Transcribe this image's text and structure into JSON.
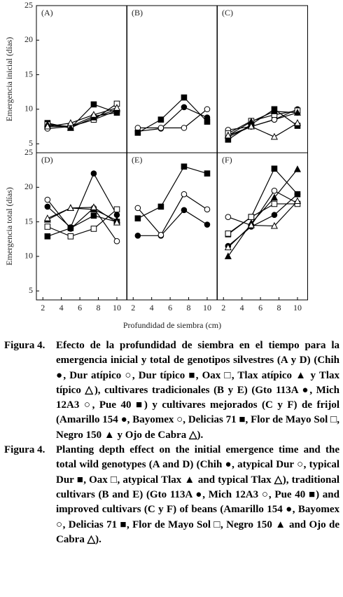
{
  "chart_data": [
    {
      "type": "line",
      "title": "(A)",
      "ylabel": "Emergencia inicial (días)",
      "x": [
        2.5,
        5,
        7.5,
        10
      ],
      "xlim": [
        1.3,
        11.1
      ],
      "ylim": [
        3.7,
        25
      ],
      "yticks": [
        5,
        10,
        15,
        20,
        25
      ],
      "series": [
        {
          "marker": "circle",
          "filled": true,
          "color": "#000000",
          "values": [
            7.5,
            7.5,
            9,
            9.5
          ]
        },
        {
          "marker": "circle",
          "filled": false,
          "color": "#000000",
          "values": [
            7.2,
            7.5,
            8.5,
            9.8
          ]
        },
        {
          "marker": "square",
          "filled": true,
          "color": "#000000",
          "values": [
            8,
            7.3,
            10.7,
            9.5
          ]
        },
        {
          "marker": "square",
          "filled": false,
          "color": "#000000",
          "values": [
            7.8,
            7.5,
            8.5,
            10.8
          ]
        },
        {
          "marker": "triangle",
          "filled": true,
          "color": "#000000",
          "values": [
            7.8,
            7.3,
            8.8,
            10
          ]
        },
        {
          "marker": "triangle",
          "filled": false,
          "color": "#000000",
          "values": [
            7.5,
            8,
            9.2,
            10.2
          ]
        }
      ]
    },
    {
      "type": "line",
      "title": "(B)",
      "x": [
        2.5,
        5,
        7.5,
        10
      ],
      "xlim": [
        1.3,
        11.1
      ],
      "ylim": [
        3.7,
        25
      ],
      "series": [
        {
          "marker": "circle",
          "filled": true,
          "color": "#000000",
          "values": [
            6.8,
            7.2,
            10.3,
            8.8
          ]
        },
        {
          "marker": "circle",
          "filled": false,
          "color": "#000000",
          "values": [
            7.3,
            7.3,
            7.3,
            10
          ]
        },
        {
          "marker": "square",
          "filled": true,
          "color": "#000000",
          "values": [
            6.6,
            8.5,
            11.7,
            8.2
          ]
        }
      ]
    },
    {
      "type": "line",
      "title": "(C)",
      "x": [
        2.5,
        5,
        7.5,
        10
      ],
      "xlim": [
        1.3,
        11.1
      ],
      "ylim": [
        3.7,
        25
      ],
      "series": [
        {
          "marker": "circle",
          "filled": true,
          "color": "#000000",
          "values": [
            6,
            7.5,
            8.5,
            10
          ]
        },
        {
          "marker": "circle",
          "filled": false,
          "color": "#000000",
          "values": [
            7,
            7.5,
            8.5,
            9.5
          ]
        },
        {
          "marker": "square",
          "filled": true,
          "color": "#000000",
          "values": [
            5.6,
            7.8,
            10,
            7.6
          ]
        },
        {
          "marker": "square",
          "filled": false,
          "color": "#000000",
          "values": [
            6.5,
            8.3,
            9.2,
            9.8
          ]
        },
        {
          "marker": "triangle",
          "filled": true,
          "color": "#000000",
          "values": [
            6.2,
            8.2,
            9.7,
            9.5
          ]
        },
        {
          "marker": "triangle",
          "filled": false,
          "color": "#000000",
          "values": [
            6.2,
            7.5,
            6,
            8
          ]
        }
      ]
    },
    {
      "type": "line",
      "title": "(D)",
      "ylabel": "Emergencia total (días)",
      "x": [
        2.5,
        5,
        7.5,
        10
      ],
      "xlim": [
        1.3,
        11.1
      ],
      "ylim": [
        3.7,
        25
      ],
      "yticks": [
        5,
        10,
        15,
        20,
        25
      ],
      "xticks": [
        2,
        4,
        6,
        8,
        10
      ],
      "series": [
        {
          "marker": "circle",
          "filled": true,
          "color": "#000000",
          "values": [
            17.2,
            14.2,
            22,
            16
          ]
        },
        {
          "marker": "circle",
          "filled": false,
          "color": "#000000",
          "values": [
            18.2,
            14,
            17,
            12.2
          ]
        },
        {
          "marker": "square",
          "filled": true,
          "color": "#000000",
          "values": [
            12.9,
            14.1,
            15.9,
            15
          ]
        },
        {
          "marker": "square",
          "filled": false,
          "color": "#000000",
          "values": [
            14.3,
            12.9,
            14,
            16.8
          ]
        },
        {
          "marker": "triangle",
          "filled": true,
          "color": "#000000",
          "values": [
            15.3,
            17,
            16.8,
            15.2
          ]
        },
        {
          "marker": "triangle",
          "filled": false,
          "color": "#000000",
          "values": [
            15.5,
            17,
            17.1,
            14.9
          ]
        }
      ]
    },
    {
      "type": "line",
      "title": "(E)",
      "xlabel": "Profundidad de siembra (cm)",
      "x": [
        2.5,
        5,
        7.5,
        10
      ],
      "xlim": [
        1.3,
        11.1
      ],
      "ylim": [
        3.7,
        25
      ],
      "xticks": [
        2,
        4,
        6,
        8,
        10
      ],
      "series": [
        {
          "marker": "circle",
          "filled": true,
          "color": "#000000",
          "values": [
            13,
            13,
            16.7,
            14.6
          ]
        },
        {
          "marker": "circle",
          "filled": false,
          "color": "#000000",
          "values": [
            17,
            13.1,
            19,
            16.8
          ]
        },
        {
          "marker": "square",
          "filled": true,
          "color": "#000000",
          "values": [
            15.5,
            17.2,
            23,
            22
          ]
        }
      ]
    },
    {
      "type": "line",
      "title": "(F)",
      "x": [
        2.5,
        5,
        7.5,
        10
      ],
      "xlim": [
        1.3,
        11.1
      ],
      "ylim": [
        3.7,
        25
      ],
      "xticks": [
        2,
        4,
        6,
        8,
        10
      ],
      "series": [
        {
          "marker": "circle",
          "filled": true,
          "color": "#000000",
          "values": [
            11.5,
            14.3,
            16,
            19
          ]
        },
        {
          "marker": "circle",
          "filled": false,
          "color": "#000000",
          "values": [
            15.7,
            14.5,
            19.5,
            17.7
          ]
        },
        {
          "marker": "square",
          "filled": true,
          "color": "#000000",
          "values": [
            13.2,
            15.7,
            22.7,
            19
          ]
        },
        {
          "marker": "square",
          "filled": false,
          "color": "#000000",
          "values": [
            13.3,
            15.7,
            17.6,
            17.6
          ]
        },
        {
          "marker": "triangle",
          "filled": true,
          "color": "#000000",
          "values": [
            10,
            14.8,
            18.5,
            22.6
          ]
        },
        {
          "marker": "triangle",
          "filled": false,
          "color": "#000000",
          "values": [
            11.3,
            14.5,
            14.4,
            18
          ]
        }
      ]
    }
  ],
  "caption": [
    {
      "label": "Figura 4.",
      "text": "Efecto de la profundidad de siembra en el tiempo para la emergencia inicial y total de genotipos silvestres (A y D) (Chih ●, Dur atípico ○, Dur típico ■, Oax □, Tlax atípico ▲ y Tlax típico △), cultivares tradicionales (B y E) (Gto 113A ●, Mich 12A3 ○, Pue 40 ■) y cultivares mejorados (C y F) de frijol (Amarillo 154 ●, Bayomex ○, Delicias 71 ■, Flor de Mayo Sol □, Negro 150 ▲ y Ojo de Cabra △)."
    },
    {
      "label": "Figura 4.",
      "text": "Planting depth effect on the initial emergence time and the total wild genotypes (A and D) (Chih ●, atypical Dur ○, typical Dur ■, Oax □, atypical Tlax ▲ and typical Tlax △), traditional cultivars (B and E) (Gto 113A ●, Mich 12A3 ○, Pue 40 ■) and improved cultivars (C y F) of beans (Amarillo 154 ●, Bayomex ○, Delicias 71 ■, Flor de Mayo Sol □, Negro 150 ▲ and Ojo de Cabra △)."
    }
  ]
}
